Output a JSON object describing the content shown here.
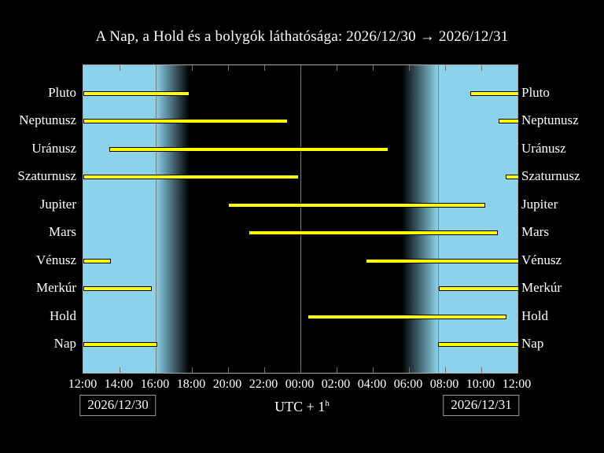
{
  "title": "A Nap, a Hold és a bolygók láthatósága: 2026/12/30 → 2026/12/31",
  "footer": {
    "left_date": "2026/12/30",
    "right_date": "2026/12/31",
    "timezone_label": "UTC + 1",
    "timezone_superscript": "h"
  },
  "chart_data": {
    "type": "bar",
    "subtype": "horizontal-visibility-gantt",
    "description": "Visibility intervals of Sun, Moon and planets; x axis is 24 hours from 12:00 local (UTC+1) on 2026/12/30 to 12:00 on 2026/12/31. Interval values are hours after 12:00.",
    "x_axis": {
      "hours_span": 24,
      "tick_interval_hours": 2,
      "tick_labels": [
        "12:00",
        "14:00",
        "16:00",
        "18:00",
        "20:00",
        "22:00",
        "00:00",
        "02:00",
        "04:00",
        "06:00",
        "08:00",
        "10:00",
        "12:00"
      ]
    },
    "rows": [
      {
        "label": "Pluto",
        "intervals": [
          [
            0,
            5.78
          ],
          [
            21.39,
            24
          ]
        ]
      },
      {
        "label": "Neptunusz",
        "intervals": [
          [
            0,
            11.22
          ],
          [
            22.96,
            24
          ]
        ]
      },
      {
        "label": "Uránusz",
        "intervals": [
          [
            1.43,
            16.78
          ]
        ]
      },
      {
        "label": "Szaturnusz",
        "intervals": [
          [
            0,
            11.83
          ],
          [
            23.35,
            24
          ]
        ]
      },
      {
        "label": "Jupiter",
        "intervals": [
          [
            8.0,
            22.13
          ]
        ]
      },
      {
        "label": "Mars",
        "intervals": [
          [
            9.13,
            22.83
          ]
        ]
      },
      {
        "label": "Vénusz",
        "intervals": [
          [
            0,
            1.43
          ],
          [
            15.61,
            24
          ]
        ]
      },
      {
        "label": "Merkúr",
        "intervals": [
          [
            0,
            3.7
          ],
          [
            19.65,
            24
          ]
        ]
      },
      {
        "label": "Hold",
        "intervals": [
          [
            12.39,
            23.3
          ]
        ]
      },
      {
        "label": "Nap",
        "intervals": [
          [
            0,
            4.0
          ],
          [
            19.61,
            24
          ]
        ]
      }
    ],
    "sky": {
      "sunset_h": 4.0,
      "dusk_end_h": 5.87,
      "dawn_start_h": 17.61,
      "sunrise_h": 19.61,
      "midnight_h": 12.0,
      "day_color": "#8dd2eb",
      "night_color": "#000000",
      "bar_color": "#ffff00",
      "line_color": "#7d7d7d"
    },
    "legend": false,
    "grid": false
  }
}
